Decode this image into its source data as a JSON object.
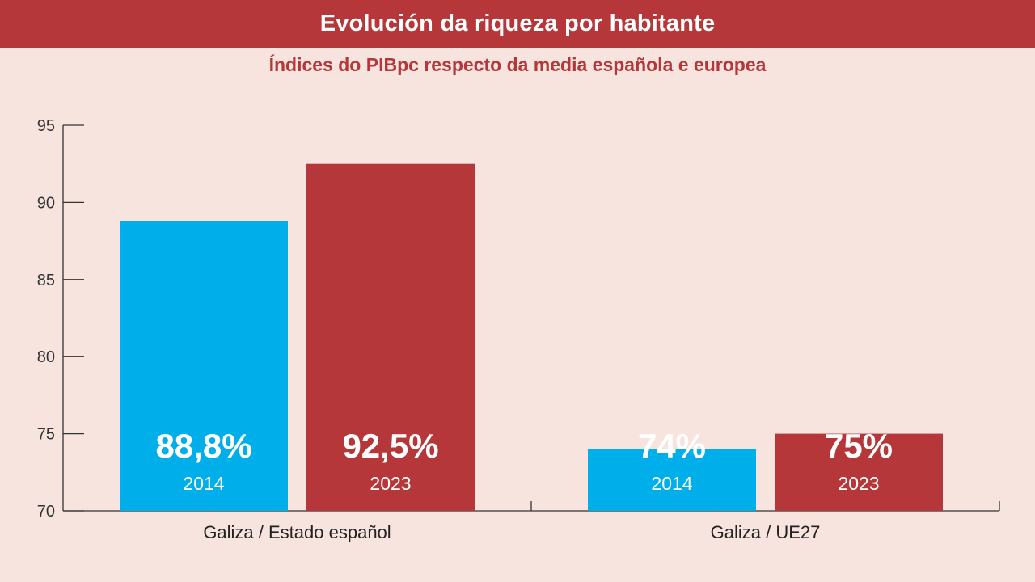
{
  "header": {
    "title": "Evolución da riqueza por habitante",
    "subtitle": "Índices do PIBpc respecto da media española e europea"
  },
  "colors": {
    "background": "#f7e4df",
    "header_bg": "#b5373a",
    "series_2014": "#00aeea",
    "series_2023": "#b5373a",
    "axis": "#333333"
  },
  "chart_data": {
    "type": "bar",
    "title": "Evolución da riqueza por habitante",
    "subtitle": "Índices do PIBpc respecto da media española e europea",
    "categories": [
      "Galiza / Estado español",
      "Galiza / UE27"
    ],
    "series": [
      {
        "name": "2014",
        "values": [
          88.8,
          74
        ],
        "labels": [
          "88,8%",
          "74%"
        ],
        "color": "#00aeea"
      },
      {
        "name": "2023",
        "values": [
          92.5,
          75
        ],
        "labels": [
          "92,5%",
          "75%"
        ],
        "color": "#b5373a"
      }
    ],
    "ylim": [
      70,
      95
    ],
    "yticks": [
      "70",
      "75",
      "80",
      "85",
      "90",
      "95"
    ],
    "xlabel": "",
    "ylabel": "",
    "grid": false,
    "legend": "none"
  }
}
